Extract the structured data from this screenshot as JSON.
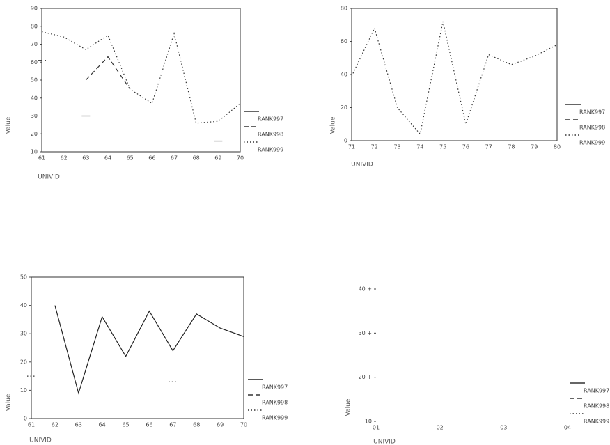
{
  "chart_data": [
    {
      "type": "line",
      "x_label": "UNIVID",
      "y_label": "Value",
      "categories": [
        "61",
        "62",
        "63",
        "64",
        "65",
        "66",
        "67",
        "68",
        "69",
        "70"
      ],
      "ylim": [
        10,
        90
      ],
      "yticks": [
        10,
        20,
        30,
        40,
        50,
        60,
        70,
        80,
        90
      ],
      "series": [
        {
          "name": "RANK997",
          "color": "#333333",
          "style": "solid",
          "values": [
            null,
            null,
            30,
            null,
            null,
            null,
            null,
            null,
            16,
            null
          ]
        },
        {
          "name": "RANK998",
          "color": "#333333",
          "style": "dashed",
          "values": [
            61,
            null,
            50,
            63,
            45,
            null,
            null,
            null,
            null,
            null
          ]
        },
        {
          "name": "RANK999",
          "color": "#333333",
          "style": "dotted",
          "values": [
            77,
            74,
            67,
            75,
            45,
            37,
            76,
            26,
            27,
            37
          ]
        }
      ]
    },
    {
      "type": "line",
      "x_label": "UNIVID",
      "y_label": "Value",
      "categories": [
        "71",
        "72",
        "73",
        "74",
        "75",
        "76",
        "77",
        "78",
        "79",
        "80"
      ],
      "ylim": [
        0,
        80
      ],
      "yticks": [
        0,
        20,
        40,
        60,
        80
      ],
      "series": [
        {
          "name": "RANK997",
          "color": "#333333",
          "style": "solid",
          "values": [
            null,
            null,
            null,
            null,
            null,
            null,
            null,
            null,
            null,
            null
          ]
        },
        {
          "name": "RANK998",
          "color": "#333333",
          "style": "dashed",
          "values": [
            null,
            null,
            null,
            null,
            null,
            null,
            null,
            null,
            null,
            null
          ]
        },
        {
          "name": "RANK999",
          "color": "#333333",
          "style": "dotted",
          "values": [
            39,
            68,
            20,
            4,
            72,
            10,
            52,
            46,
            51,
            58
          ]
        }
      ]
    },
    {
      "type": "line",
      "x_label": "UNIVID",
      "y_label": "Value",
      "categories": [
        "61",
        "62",
        "63",
        "64",
        "65",
        "66",
        "67",
        "68",
        "69",
        "70"
      ],
      "ylim": [
        0,
        50
      ],
      "yticks": [
        0,
        10,
        20,
        30,
        40,
        50
      ],
      "series": [
        {
          "name": "RANK997",
          "color": "#222222",
          "style": "solid",
          "values": [
            null,
            40,
            9,
            36,
            22,
            38,
            24,
            37,
            32,
            29
          ]
        },
        {
          "name": "RANK998",
          "color": "#333333",
          "style": "dashed",
          "values": [
            null,
            null,
            null,
            null,
            null,
            null,
            null,
            null,
            null,
            null
          ]
        },
        {
          "name": "RANK999",
          "color": "#333333",
          "style": "dotted",
          "values": [
            15,
            null,
            null,
            null,
            null,
            null,
            13,
            null,
            null,
            null
          ]
        }
      ]
    },
    {
      "type": "line",
      "x_label": "UNIVID",
      "y_label": "Value",
      "categories": [
        "01",
        "02",
        "03",
        "04"
      ],
      "ylim": [
        10,
        40
      ],
      "yticks": [
        {
          "value": 10,
          "label": "10"
        },
        {
          "value": 20,
          "label": "20 +"
        },
        {
          "value": 30,
          "label": "30 +"
        },
        {
          "value": 40,
          "label": "40 +"
        }
      ],
      "series": [
        {
          "name": "RANK997",
          "color": "#333333",
          "style": "solid",
          "values": [
            null,
            null,
            null,
            null
          ]
        },
        {
          "name": "RANK998",
          "color": "#333333",
          "style": "dashed",
          "values": [
            null,
            null,
            null,
            null
          ]
        },
        {
          "name": "RANK999",
          "color": "#333333",
          "style": "dotted",
          "values": [
            null,
            null,
            null,
            null
          ]
        }
      ]
    }
  ]
}
